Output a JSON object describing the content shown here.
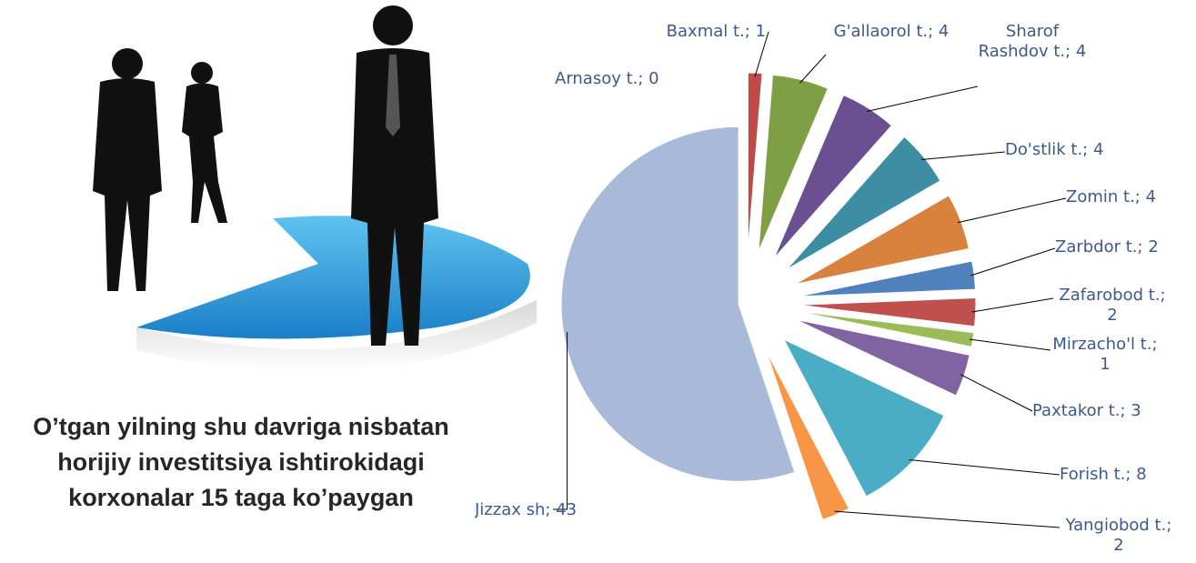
{
  "caption": [
    "O’tgan yilning shu davriga nisbatan",
    "horijiy investitsiya ishtirokidagi",
    "korxonalar 15 taga ko’paygan"
  ],
  "chart_data": {
    "type": "pie",
    "values": [
      0,
      1,
      4,
      4,
      4,
      4,
      2,
      2,
      1,
      3,
      8,
      2,
      43
    ],
    "value_labels": [
      "Arnasoy t.; 0",
      "Baxmal t.; 1",
      "G'allaorol t.; 4",
      "Sharof Rashdov  t.; 4",
      "Do'stlik t.; 4",
      "Zomin t.; 4",
      "Zarbdor t.; 2",
      "Zafarobod t.; 2",
      "Mirzacho'l t.; 1",
      "Paxtakor t.; 3",
      "Forish t.; 8",
      "Yangiobod t.; 2",
      "Jizzax sh; 43"
    ],
    "colors": [
      "#4f81bd",
      "#be4b48",
      "#7f9f45",
      "#6a5090",
      "#3d8da3",
      "#d9813e",
      "#4f81bd",
      "#c0504d",
      "#9bbb59",
      "#8064a2",
      "#4bacc6",
      "#f79646",
      "#a9b9d9"
    ]
  }
}
